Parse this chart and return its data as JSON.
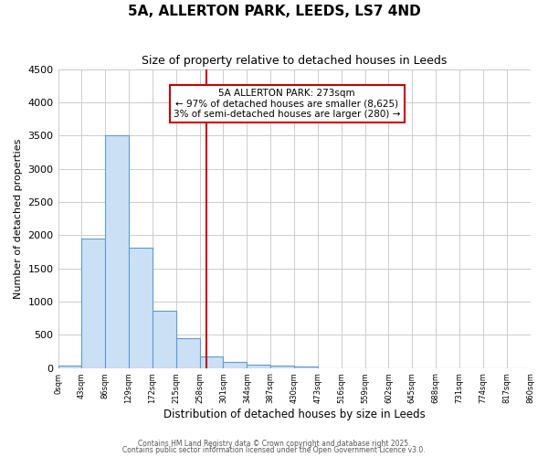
{
  "title": "5A, ALLERTON PARK, LEEDS, LS7 4ND",
  "subtitle": "Size of property relative to detached houses in Leeds",
  "xlabel": "Distribution of detached houses by size in Leeds",
  "ylabel": "Number of detached properties",
  "bin_edges": [
    "0sqm",
    "43sqm",
    "86sqm",
    "129sqm",
    "172sqm",
    "215sqm",
    "258sqm",
    "301sqm",
    "344sqm",
    "387sqm",
    "430sqm",
    "473sqm",
    "516sqm",
    "559sqm",
    "602sqm",
    "645sqm",
    "688sqm",
    "731sqm",
    "774sqm",
    "817sqm",
    "860sqm"
  ],
  "bar_values": [
    30,
    1950,
    3510,
    1810,
    860,
    455,
    170,
    95,
    45,
    30,
    20,
    0,
    0,
    0,
    0,
    0,
    0,
    0,
    0,
    0
  ],
  "bar_color": "#cce0f5",
  "bar_edge_color": "#5b9bd5",
  "vline_x": 6.27,
  "vline_color": "#cc0000",
  "annotation_title": "5A ALLERTON PARK: 273sqm",
  "annotation_line1": "← 97% of detached houses are smaller (8,625)",
  "annotation_line2": "3% of semi-detached houses are larger (280) →",
  "annotation_box_color": "#ffffff",
  "annotation_box_edge_color": "#cc0000",
  "ylim": [
    0,
    4500
  ],
  "yticks": [
    0,
    500,
    1000,
    1500,
    2000,
    2500,
    3000,
    3500,
    4000,
    4500
  ],
  "background_color": "#ffffff",
  "grid_color": "#cccccc",
  "footer1": "Contains HM Land Registry data © Crown copyright and database right 2025.",
  "footer2": "Contains public sector information licensed under the Open Government Licence v3.0."
}
